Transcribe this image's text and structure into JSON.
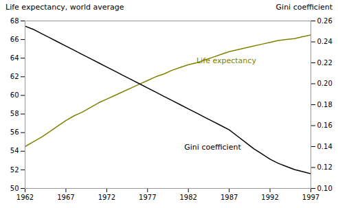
{
  "chart_data": {
    "type": "line",
    "ylabel": "Life expectancy, world average",
    "y2label": "Gini coefficient",
    "x": [
      1962,
      1963,
      1964,
      1965,
      1966,
      1967,
      1968,
      1969,
      1970,
      1971,
      1972,
      1973,
      1974,
      1975,
      1976,
      1977,
      1978,
      1979,
      1980,
      1981,
      1982,
      1983,
      1984,
      1985,
      1986,
      1987,
      1988,
      1989,
      1990,
      1991,
      1992,
      1993,
      1994,
      1995,
      1996,
      1997
    ],
    "series": [
      {
        "name": "Life expectancy",
        "color": "#808000",
        "axis": "y",
        "values": [
          54.5,
          55.0,
          55.5,
          56.1,
          56.7,
          57.3,
          57.8,
          58.2,
          58.7,
          59.2,
          59.6,
          60.0,
          60.4,
          60.8,
          61.2,
          61.6,
          62.0,
          62.3,
          62.7,
          63.0,
          63.3,
          63.5,
          63.8,
          64.1,
          64.4,
          64.7,
          64.9,
          65.1,
          65.3,
          65.5,
          65.7,
          65.9,
          66.0,
          66.1,
          66.3,
          66.5
        ]
      },
      {
        "name": "Gini coefficient",
        "color": "#000000",
        "axis": "y2",
        "values": [
          0.255,
          0.252,
          0.248,
          0.244,
          0.24,
          0.236,
          0.232,
          0.228,
          0.224,
          0.22,
          0.216,
          0.212,
          0.208,
          0.204,
          0.2,
          0.196,
          0.192,
          0.188,
          0.184,
          0.18,
          0.176,
          0.172,
          0.168,
          0.164,
          0.16,
          0.156,
          0.15,
          0.144,
          0.138,
          0.133,
          0.128,
          0.124,
          0.121,
          0.118,
          0.116,
          0.114
        ]
      }
    ],
    "xlim": [
      1962,
      1997
    ],
    "xticks": [
      1962,
      1967,
      1972,
      1977,
      1982,
      1987,
      1992,
      1997
    ],
    "ylim": [
      50,
      68
    ],
    "yticks": [
      50,
      52,
      54,
      56,
      58,
      60,
      62,
      64,
      66,
      68
    ],
    "y2lim": [
      0.1,
      0.26
    ],
    "y2ticks": [
      {
        "value": 0.1,
        "label": "0.10"
      },
      0.12,
      0.14,
      0.16,
      0.18,
      {
        "value": 0.2,
        "label": "0.20"
      },
      0.22,
      0.24,
      0.26
    ],
    "annotations": [
      {
        "text": "Life expectancy",
        "x": 1983,
        "y": 63.5,
        "color": "#808000"
      },
      {
        "text": "Gini coefficient",
        "x": 1981.5,
        "y": 54.2,
        "color": "#000000"
      }
    ],
    "grid": false,
    "legend": false
  }
}
